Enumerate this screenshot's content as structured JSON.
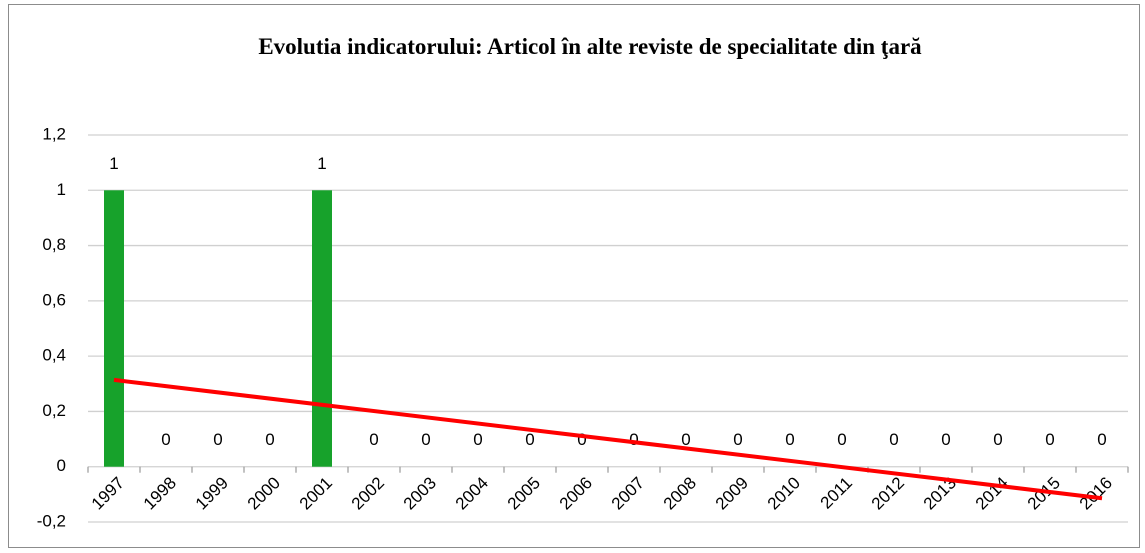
{
  "chart_data": {
    "type": "bar",
    "title": "Evolutia indicatorului: Articol în alte reviste de specialitate din ţară",
    "categories": [
      "1997",
      "1998",
      "1999",
      "2000",
      "2001",
      "2002",
      "2003",
      "2004",
      "2005",
      "2006",
      "2007",
      "2008",
      "2009",
      "2010",
      "2011",
      "2012",
      "2013",
      "2014",
      "2015",
      "2016"
    ],
    "values": [
      1,
      0,
      0,
      0,
      1,
      0,
      0,
      0,
      0,
      0,
      0,
      0,
      0,
      0,
      0,
      0,
      0,
      0,
      0,
      0
    ],
    "color": "#17a22b",
    "trendline": {
      "color": "#ff0000",
      "start": 0.314,
      "end": -0.114
    },
    "ylim": [
      -0.2,
      1.2
    ],
    "yticks": [
      {
        "value": -0.2,
        "label": "-0,2"
      },
      0,
      {
        "value": 0.2,
        "label": "0,2"
      },
      {
        "value": 0.4,
        "label": "0,4"
      },
      {
        "value": 0.6,
        "label": "0,6"
      },
      {
        "value": 0.8,
        "label": "0,8"
      },
      1,
      {
        "value": 1.2,
        "label": "1,2"
      }
    ],
    "grid": true
  }
}
